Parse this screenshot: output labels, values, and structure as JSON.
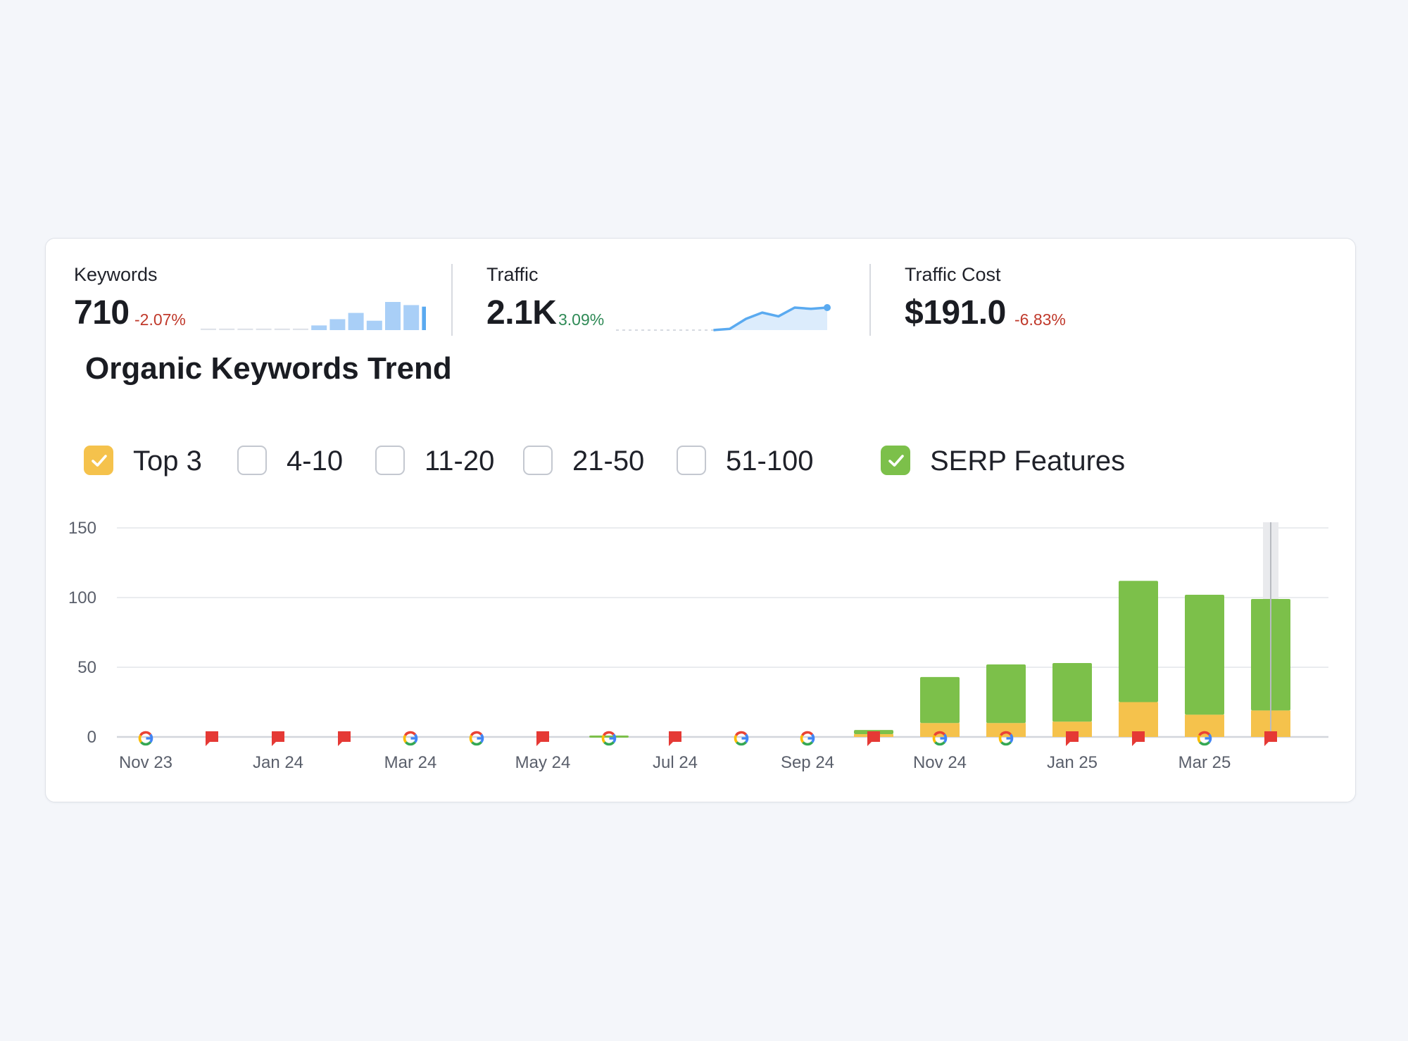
{
  "metrics": {
    "keywords": {
      "label": "Keywords",
      "value": "710",
      "delta": "-2.07%"
    },
    "traffic": {
      "label": "Traffic",
      "value": "2.1K",
      "delta": "3.09%"
    },
    "traffic_cost": {
      "label": "Traffic Cost",
      "value": "$191.0",
      "delta": "-6.83%"
    }
  },
  "sparklines": {
    "keywords_bars": [
      1,
      1,
      1,
      1,
      1,
      1,
      3,
      7,
      11,
      6,
      18,
      16,
      15
    ],
    "traffic_line": [
      0,
      0,
      0,
      0,
      0,
      0,
      0,
      0.1,
      0.9,
      1.4,
      1.1,
      1.8,
      1.7,
      1.8
    ]
  },
  "chart_title": "Organic Keywords Trend",
  "legend": [
    {
      "label": "Top 3",
      "checked": true,
      "color": "#f5c24c"
    },
    {
      "label": "4-10",
      "checked": false
    },
    {
      "label": "11-20",
      "checked": false
    },
    {
      "label": "21-50",
      "checked": false
    },
    {
      "label": "51-100",
      "checked": false
    },
    {
      "label": "SERP Features",
      "checked": true,
      "color": "#7cc04a"
    }
  ],
  "colors": {
    "top3": "#f5c24c",
    "serp": "#7cc04a",
    "sparkline_bar": "#a9cff7",
    "sparkline_bar_last": "#5aaaf0",
    "sparkline_line": "#5aaaf0",
    "neg": "#c0392b",
    "pos": "#2f8a56",
    "flag": "#e53935"
  },
  "chart_data": {
    "type": "bar",
    "stacked": true,
    "categories": [
      "Nov 23",
      "Dec 23",
      "Jan 24",
      "Feb 24",
      "Mar 24",
      "Apr 24",
      "May 24",
      "Jun 24",
      "Jul 24",
      "Aug 24",
      "Sep 24",
      "Oct 24",
      "Nov 24",
      "Dec 24",
      "Jan 25",
      "Feb 25",
      "Mar 25",
      "Apr 25"
    ],
    "tick_labels": [
      "Nov 23",
      "Jan 24",
      "Mar 24",
      "May 24",
      "Jul 24",
      "Sep 24",
      "Nov 24",
      "Jan 25",
      "Mar 25"
    ],
    "series": [
      {
        "name": "Top 3",
        "values": [
          0,
          0,
          0,
          0,
          0,
          0,
          0,
          0,
          0,
          0,
          0,
          2,
          10,
          10,
          11,
          25,
          16,
          19
        ]
      },
      {
        "name": "SERP Features",
        "values": [
          0,
          0,
          0,
          0,
          0,
          0,
          0,
          1,
          0,
          0,
          0,
          3,
          33,
          42,
          42,
          87,
          86,
          80
        ]
      }
    ],
    "ylim": [
      0,
      150
    ],
    "yticks": [
      0,
      50,
      100,
      150
    ],
    "grid": true,
    "markers": [
      "google",
      "note",
      "note",
      "note",
      "google",
      "google",
      "note",
      "google",
      "note",
      "google",
      "google",
      "note",
      "google",
      "google",
      "note",
      "note",
      "google",
      "note"
    ],
    "highlighted_category": "Apr 25"
  }
}
